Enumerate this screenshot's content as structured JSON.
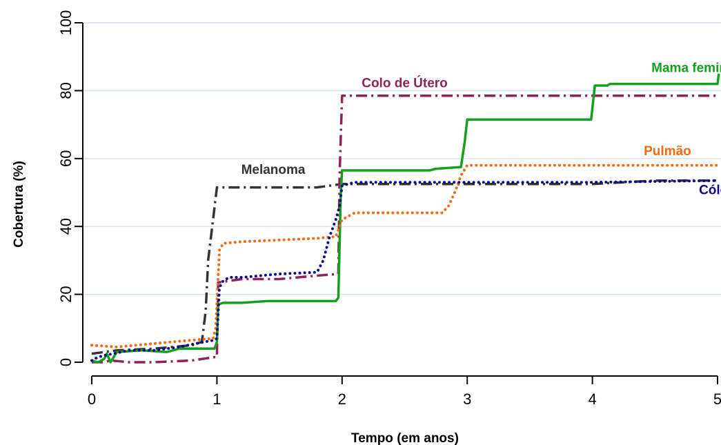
{
  "chart_data": {
    "type": "line",
    "xlabel": "Tempo (em anos)",
    "ylabel": "Cobertura (%)",
    "xlim": [
      0,
      5
    ],
    "ylim": [
      0,
      100
    ],
    "xticks": [
      "0",
      "1",
      "2",
      "3",
      "4",
      "5"
    ],
    "yticks": [
      "0",
      "20",
      "40",
      "60",
      "80",
      "100"
    ],
    "grid": "horizontal",
    "series": [
      {
        "name": "Melanoma",
        "color": "#333333",
        "style": "dash-dot",
        "x": [
          0,
          0.2,
          0.5,
          0.8,
          0.88,
          0.91,
          0.93,
          1.0,
          1.2,
          1.5,
          1.8,
          1.9,
          2.0,
          2.5,
          3.0,
          3.5,
          4.0,
          4.5,
          5.0
        ],
        "y": [
          2.5,
          3.5,
          4.0,
          5.0,
          6.0,
          15,
          30,
          51.5,
          51.5,
          51.5,
          51.5,
          52.0,
          52.5,
          52.5,
          52.5,
          52.5,
          52.5,
          53.5,
          53.5
        ]
      },
      {
        "name": "Colo de Útero",
        "color": "#8E2455",
        "style": "dash-dot",
        "x": [
          0,
          0.1,
          0.15,
          0.3,
          0.5,
          0.8,
          0.98,
          1.0,
          1.01,
          1.2,
          1.5,
          1.8,
          1.97,
          1.98,
          2.0,
          2.5,
          3.0,
          4.0,
          5.0
        ],
        "y": [
          0,
          0,
          0.5,
          0,
          0,
          0.5,
          1.5,
          1.5,
          23.5,
          24.5,
          24.5,
          25.5,
          26.0,
          55.0,
          78.5,
          78.5,
          78.5,
          78.5,
          78.5
        ]
      },
      {
        "name": "Mama feminina",
        "color": "#14A01E",
        "style": "solid",
        "x": [
          0,
          0.05,
          0.1,
          0.12,
          0.15,
          0.2,
          0.4,
          0.6,
          0.7,
          0.98,
          1.0,
          1.01,
          1.05,
          1.1,
          1.2,
          1.4,
          1.6,
          1.95,
          1.97,
          1.99,
          2.0,
          2.5,
          2.7,
          2.75,
          2.95,
          2.98,
          3.0,
          3.99,
          4.02,
          4.12,
          4.14,
          5.0,
          5.01
        ],
        "y": [
          0.5,
          0,
          1.0,
          2.5,
          0,
          3.0,
          3.5,
          3.0,
          4.0,
          4.0,
          6.0,
          17.0,
          17.5,
          17.5,
          17.5,
          18.0,
          18.0,
          18.0,
          19.0,
          50.0,
          56.5,
          56.5,
          56.5,
          57.0,
          57.5,
          65.0,
          71.5,
          71.5,
          81.5,
          81.5,
          82.0,
          82.0,
          85.0
        ]
      },
      {
        "name": "Pulmão",
        "color": "#F26A10",
        "style": "dotted",
        "x": [
          0,
          0.2,
          0.5,
          0.8,
          0.97,
          0.99,
          1.01,
          1.02,
          1.05,
          1.2,
          1.5,
          1.8,
          1.95,
          1.98,
          2.0,
          2.05,
          2.1,
          2.5,
          2.8,
          2.85,
          2.9,
          2.95,
          3.0,
          3.5,
          4.0,
          5.0
        ],
        "y": [
          5.0,
          4.5,
          5.5,
          6.5,
          7.0,
          10.0,
          25.0,
          33.0,
          35.0,
          35.5,
          36.0,
          36.5,
          37.0,
          40.0,
          42.0,
          43.0,
          44.0,
          44.0,
          44.0,
          46.0,
          50.0,
          55.0,
          58.0,
          58.0,
          58.0,
          58.0
        ]
      },
      {
        "name": "Cólon",
        "color": "#0A0A8C",
        "style": "dotted",
        "x": [
          0,
          0.05,
          0.1,
          0.3,
          0.5,
          0.7,
          0.9,
          0.98,
          1.0,
          1.02,
          1.05,
          1.1,
          1.2,
          1.5,
          1.8,
          1.85,
          1.9,
          1.95,
          1.98,
          2.0,
          2.1,
          2.5,
          3.0,
          4.0,
          5.0
        ],
        "y": [
          0.5,
          1.5,
          2.0,
          3.5,
          3.5,
          4.5,
          6.0,
          6.5,
          7.0,
          22.0,
          24.0,
          25.0,
          25.0,
          26.0,
          26.5,
          30.0,
          37.0,
          42.0,
          46.0,
          52.0,
          53.0,
          53.0,
          53.0,
          53.0,
          53.5
        ]
      }
    ],
    "annotations": [
      {
        "text": "Melanoma",
        "series": "Melanoma",
        "x": 1.45,
        "y": 55.5,
        "color": "#333333",
        "anchor": "middle"
      },
      {
        "text": "Colo de Útero",
        "series": "Colo de Útero",
        "x": 2.5,
        "y": 81,
        "color": "#8E2455",
        "anchor": "middle"
      },
      {
        "text": "Mama feminina",
        "series": "Mama feminina",
        "x": 4.85,
        "y": 85.5,
        "color": "#14A01E",
        "anchor": "middle"
      },
      {
        "text": "Pulmão",
        "series": "Pulmão",
        "x": 4.6,
        "y": 61,
        "color": "#F26A10",
        "anchor": "middle"
      },
      {
        "text": "Cólon",
        "series": "Cólon",
        "x": 5.0,
        "y": 49.5,
        "color": "#0A0A8C",
        "anchor": "middle"
      }
    ]
  }
}
